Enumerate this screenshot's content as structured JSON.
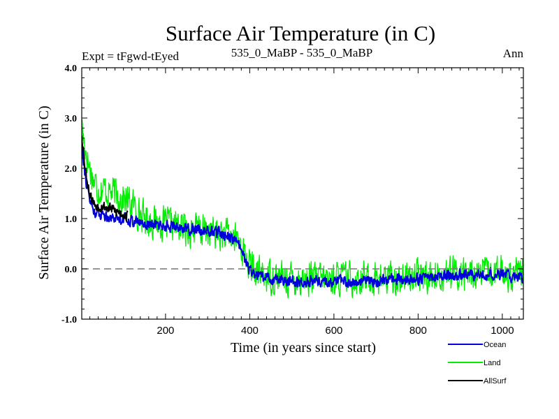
{
  "chart_data": {
    "type": "line",
    "title": "Surface Air Temperature (in C)",
    "subtitle_left": "Expt = tFgwd-tEyed",
    "subtitle_center": "535_0_MaBP - 535_0_MaBP",
    "subtitle_right": "Ann",
    "xlabel": "Time (in years since start)",
    "ylabel": "Surface Air Temperature (in C)",
    "xlim": [
      1,
      1050
    ],
    "ylim": [
      -1.0,
      4.0
    ],
    "xticks": [
      200,
      400,
      600,
      800,
      1000
    ],
    "xtick_labels": [
      "200",
      "400",
      "600",
      "800",
      "1000"
    ],
    "yticks": [
      -1.0,
      0.0,
      1.0,
      2.0,
      3.0,
      4.0
    ],
    "ytick_labels": [
      "-1.0",
      "0.0",
      "1.0",
      "2.0",
      "3.0",
      "4.0"
    ],
    "reference_line": {
      "y": 0.0,
      "style": "dashed",
      "color": "#777777"
    },
    "series": [
      {
        "name": "Land",
        "color": "#00ee00",
        "x": [
          1,
          5,
          10,
          20,
          30,
          40,
          50,
          60,
          80,
          100,
          125,
          150,
          175,
          200,
          225,
          250,
          275,
          300,
          325,
          350,
          370,
          380,
          390,
          400,
          420,
          450,
          500,
          550,
          600,
          650,
          700,
          750,
          800,
          850,
          900,
          950,
          1000,
          1050
        ],
        "values": [
          2.9,
          2.6,
          2.4,
          2.0,
          1.75,
          1.6,
          1.6,
          1.55,
          1.5,
          1.4,
          1.25,
          1.0,
          0.95,
          0.88,
          0.85,
          0.8,
          0.78,
          0.75,
          0.7,
          0.65,
          0.6,
          0.45,
          0.25,
          0.05,
          -0.1,
          -0.15,
          -0.2,
          -0.2,
          -0.2,
          -0.18,
          -0.2,
          -0.18,
          -0.15,
          -0.12,
          -0.1,
          -0.1,
          -0.08,
          -0.1
        ],
        "noise": 0.3
      },
      {
        "name": "Ocean",
        "color": "#0000dd",
        "x": [
          1,
          5,
          10,
          20,
          30,
          40,
          50,
          60,
          80,
          100,
          125,
          150,
          175,
          200,
          225,
          250,
          275,
          300,
          325,
          350,
          370,
          380,
          390,
          400,
          420,
          450,
          500,
          550,
          600,
          650,
          700,
          750,
          800,
          850,
          900,
          950,
          1000,
          1050
        ],
        "values": [
          2.6,
          2.2,
          1.8,
          1.35,
          1.15,
          1.1,
          1.1,
          1.05,
          1.02,
          1.0,
          0.95,
          0.9,
          0.88,
          0.85,
          0.85,
          0.8,
          0.78,
          0.75,
          0.72,
          0.65,
          0.55,
          0.35,
          0.15,
          -0.05,
          -0.15,
          -0.2,
          -0.25,
          -0.25,
          -0.25,
          -0.25,
          -0.25,
          -0.2,
          -0.2,
          -0.15,
          -0.12,
          -0.12,
          -0.1,
          -0.2
        ],
        "noise": 0.1
      },
      {
        "name": "AllSurf",
        "color": "#000000",
        "x": [
          1,
          5,
          10,
          20,
          30,
          40,
          50,
          60,
          70,
          80,
          90,
          100,
          110
        ],
        "values": [
          2.7,
          2.35,
          1.95,
          1.5,
          1.3,
          1.25,
          1.25,
          1.22,
          1.2,
          1.15,
          1.12,
          1.1,
          1.05
        ],
        "noise": 0.1
      }
    ],
    "legend": {
      "placement": "bottom-right",
      "entries": [
        "Ocean",
        "Land",
        "AllSurf"
      ]
    }
  }
}
